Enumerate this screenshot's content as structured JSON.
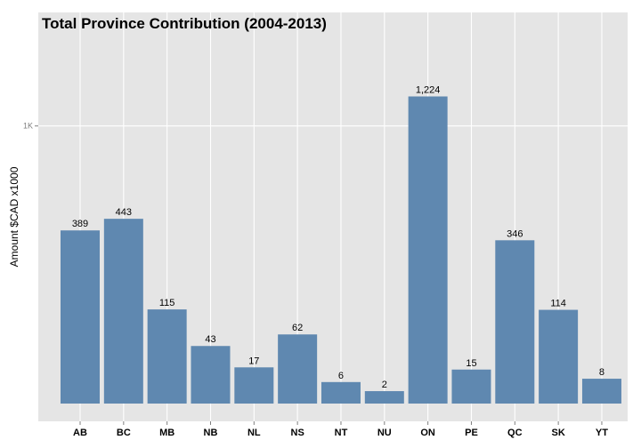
{
  "chart_data": {
    "type": "bar",
    "title": "Total Province Contribution (2004-2013)",
    "xlabel": "",
    "ylabel": "Amount $CAD x1000",
    "categories": [
      "AB",
      "BC",
      "MB",
      "NB",
      "NL",
      "NS",
      "NT",
      "NU",
      "ON",
      "PE",
      "QC",
      "SK",
      "YT"
    ],
    "values": [
      389,
      443,
      115,
      43,
      17,
      62,
      6,
      2,
      1224,
      15,
      346,
      114,
      8
    ],
    "data_labels": [
      "389",
      "443",
      "115",
      "43",
      "17",
      "62",
      "6",
      "2",
      "1,224",
      "15",
      "346",
      "114",
      "8"
    ],
    "y_ticks": [
      {
        "value": 1000,
        "label": "1K"
      }
    ],
    "y_scale": "sqrt",
    "ylim": [
      0,
      1300
    ],
    "grid": true,
    "legend": "none",
    "colors": {
      "bar": "#5f88b0",
      "panel": "#e5e5e5",
      "grid_major": "#ffffff",
      "grid_minor": "#f2f2f2"
    }
  }
}
